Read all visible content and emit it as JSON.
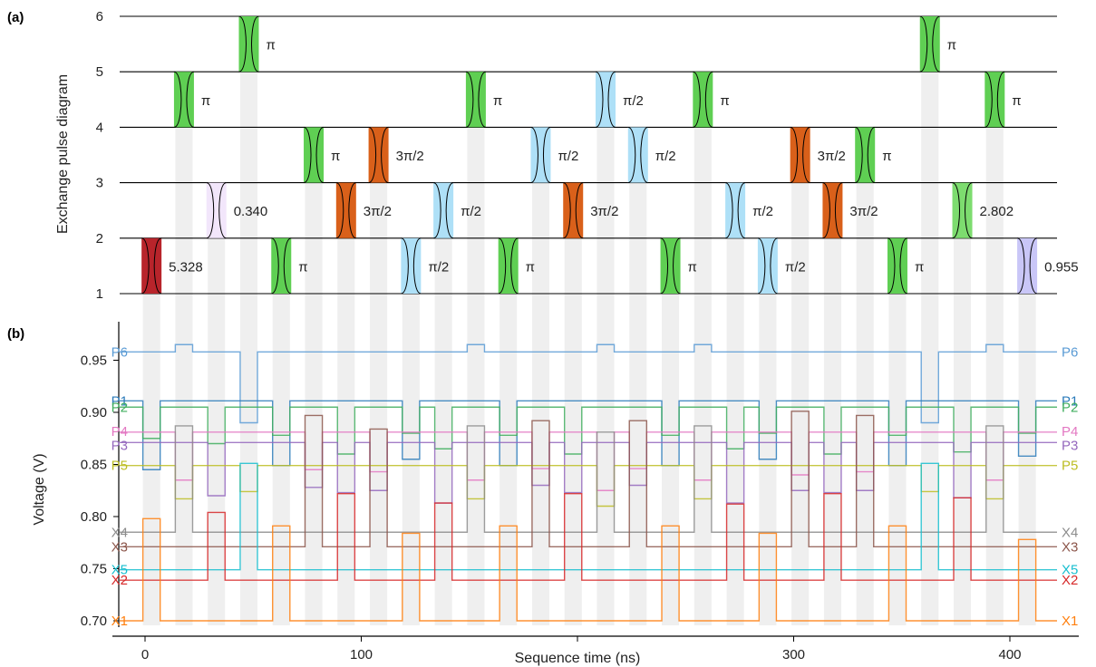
{
  "chart_data": [
    {
      "id": "a",
      "panel_label": "(a)",
      "type": "pulse-diagram",
      "ylabel": "Exchange pulse diagram",
      "qubit_lines": [
        1,
        2,
        3,
        4,
        5,
        6
      ],
      "pulses": [
        {
          "t": 3,
          "pair": [
            1,
            2
          ],
          "label": "5.328",
          "color": "#b8242b"
        },
        {
          "t": 33,
          "pair": [
            2,
            3
          ],
          "label": "0.340",
          "color": "#f2e6fb"
        },
        {
          "t": 18,
          "pair": [
            4,
            5
          ],
          "label": "π",
          "color": "#5fcf53"
        },
        {
          "t": 48,
          "pair": [
            5,
            6
          ],
          "label": "π",
          "color": "#5fcf53"
        },
        {
          "t": 63,
          "pair": [
            1,
            2
          ],
          "label": "π",
          "color": "#5fcf53"
        },
        {
          "t": 78,
          "pair": [
            3,
            4
          ],
          "label": "π",
          "color": "#5fcf53"
        },
        {
          "t": 93,
          "pair": [
            2,
            3
          ],
          "label": "3π/2",
          "color": "#d9601a"
        },
        {
          "t": 108,
          "pair": [
            3,
            4
          ],
          "label": "3π/2",
          "color": "#d9601a"
        },
        {
          "t": 123,
          "pair": [
            1,
            2
          ],
          "label": "π/2",
          "color": "#aee0f7"
        },
        {
          "t": 138,
          "pair": [
            2,
            3
          ],
          "label": "π/2",
          "color": "#aee0f7"
        },
        {
          "t": 153,
          "pair": [
            4,
            5
          ],
          "label": "π",
          "color": "#5fcf53"
        },
        {
          "t": 168,
          "pair": [
            1,
            2
          ],
          "label": "π",
          "color": "#5fcf53"
        },
        {
          "t": 183,
          "pair": [
            3,
            4
          ],
          "label": "π/2",
          "color": "#aee0f7"
        },
        {
          "t": 198,
          "pair": [
            2,
            3
          ],
          "label": "3π/2",
          "color": "#d9601a"
        },
        {
          "t": 213,
          "pair": [
            4,
            5
          ],
          "label": "π/2",
          "color": "#aee0f7"
        },
        {
          "t": 228,
          "pair": [
            3,
            4
          ],
          "label": "π/2",
          "color": "#aee0f7"
        },
        {
          "t": 243,
          "pair": [
            1,
            2
          ],
          "label": "π",
          "color": "#5fcf53"
        },
        {
          "t": 258,
          "pair": [
            4,
            5
          ],
          "label": "π",
          "color": "#5fcf53"
        },
        {
          "t": 273,
          "pair": [
            2,
            3
          ],
          "label": "π/2",
          "color": "#aee0f7"
        },
        {
          "t": 288,
          "pair": [
            1,
            2
          ],
          "label": "π/2",
          "color": "#aee0f7"
        },
        {
          "t": 303,
          "pair": [
            3,
            4
          ],
          "label": "3π/2",
          "color": "#d9601a"
        },
        {
          "t": 318,
          "pair": [
            2,
            3
          ],
          "label": "3π/2",
          "color": "#d9601a"
        },
        {
          "t": 333,
          "pair": [
            3,
            4
          ],
          "label": "π",
          "color": "#5fcf53"
        },
        {
          "t": 348,
          "pair": [
            1,
            2
          ],
          "label": "π",
          "color": "#5fcf53"
        },
        {
          "t": 363,
          "pair": [
            5,
            6
          ],
          "label": "π",
          "color": "#5fcf53"
        },
        {
          "t": 378,
          "pair": [
            2,
            3
          ],
          "label": "2.802",
          "color": "#7ddc6f"
        },
        {
          "t": 393,
          "pair": [
            4,
            5
          ],
          "label": "π",
          "color": "#5fcf53"
        },
        {
          "t": 408,
          "pair": [
            1,
            2
          ],
          "label": "0.955",
          "color": "#c9c6f7"
        }
      ]
    },
    {
      "id": "b",
      "panel_label": "(b)",
      "type": "line",
      "xlabel": "Sequence time (ns)",
      "ylabel": "Voltage (V)",
      "xlim": [
        -15,
        430
      ],
      "ylim": [
        0.693,
        0.98
      ],
      "xticks": [
        0,
        100,
        200,
        300,
        400
      ],
      "xtick_labels": [
        "0",
        "100",
        "",
        "300",
        "400"
      ],
      "yticks": [
        0.7,
        0.75,
        0.8,
        0.85,
        0.9,
        0.95
      ],
      "ytick_labels": [
        "0.70",
        "0.75",
        "0.80",
        "0.85",
        "0.90",
        "0.95"
      ],
      "pulse_window_ns": 8,
      "pulse_times_ns": [
        3,
        18,
        33,
        48,
        63,
        78,
        93,
        108,
        123,
        138,
        153,
        168,
        183,
        198,
        213,
        228,
        243,
        258,
        273,
        288,
        303,
        318,
        333,
        348,
        363,
        378,
        393,
        408
      ],
      "series": [
        {
          "name": "P6",
          "color": "#5a9bd5",
          "baseline": 0.958,
          "pulses": [
            [
              18,
              0.965
            ],
            [
              48,
              0.89
            ],
            [
              153,
              0.965
            ],
            [
              213,
              0.965
            ],
            [
              258,
              0.965
            ],
            [
              363,
              0.89
            ],
            [
              393,
              0.965
            ]
          ]
        },
        {
          "name": "P1",
          "color": "#2b7bba",
          "baseline": 0.911,
          "pulses": [
            [
              3,
              0.845
            ],
            [
              63,
              0.849
            ],
            [
              123,
              0.855
            ],
            [
              168,
              0.849
            ],
            [
              243,
              0.849
            ],
            [
              288,
              0.855
            ],
            [
              348,
              0.849
            ],
            [
              408,
              0.858
            ]
          ]
        },
        {
          "name": "P2",
          "color": "#3fae5e",
          "baseline": 0.905,
          "pulses": [
            [
              3,
              0.875
            ],
            [
              33,
              0.87
            ],
            [
              63,
              0.878
            ],
            [
              93,
              0.86
            ],
            [
              123,
              0.88
            ],
            [
              138,
              0.865
            ],
            [
              168,
              0.878
            ],
            [
              198,
              0.86
            ],
            [
              243,
              0.878
            ],
            [
              273,
              0.865
            ],
            [
              288,
              0.88
            ],
            [
              318,
              0.86
            ],
            [
              348,
              0.878
            ],
            [
              378,
              0.862
            ],
            [
              408,
              0.88
            ]
          ]
        },
        {
          "name": "P4",
          "color": "#e377c2",
          "baseline": 0.881,
          "pulses": [
            [
              18,
              0.835
            ],
            [
              78,
              0.845
            ],
            [
              108,
              0.843
            ],
            [
              153,
              0.835
            ],
            [
              183,
              0.846
            ],
            [
              213,
              0.825
            ],
            [
              228,
              0.846
            ],
            [
              258,
              0.835
            ],
            [
              303,
              0.84
            ],
            [
              333,
              0.843
            ],
            [
              393,
              0.835
            ]
          ]
        },
        {
          "name": "P3",
          "color": "#9467bd",
          "baseline": 0.871,
          "pulses": [
            [
              33,
              0.82
            ],
            [
              78,
              0.828
            ],
            [
              93,
              0.823
            ],
            [
              108,
              0.825
            ],
            [
              138,
              0.813
            ],
            [
              183,
              0.83
            ],
            [
              198,
              0.823
            ],
            [
              228,
              0.83
            ],
            [
              273,
              0.813
            ],
            [
              303,
              0.825
            ],
            [
              318,
              0.823
            ],
            [
              333,
              0.825
            ],
            [
              378,
              0.818
            ]
          ]
        },
        {
          "name": "P5",
          "color": "#bcbd22",
          "baseline": 0.849,
          "pulses": [
            [
              18,
              0.817
            ],
            [
              48,
              0.824
            ],
            [
              153,
              0.817
            ],
            [
              213,
              0.81
            ],
            [
              258,
              0.817
            ],
            [
              363,
              0.824
            ],
            [
              393,
              0.817
            ]
          ]
        },
        {
          "name": "X4",
          "color": "#8c8c8c",
          "baseline": 0.785,
          "pulses": [
            [
              18,
              0.887
            ],
            [
              153,
              0.887
            ],
            [
              213,
              0.881
            ],
            [
              258,
              0.887
            ],
            [
              393,
              0.887
            ]
          ]
        },
        {
          "name": "X3",
          "color": "#8c564b",
          "baseline": 0.771,
          "pulses": [
            [
              78,
              0.897
            ],
            [
              108,
              0.884
            ],
            [
              183,
              0.892
            ],
            [
              228,
              0.892
            ],
            [
              303,
              0.901
            ],
            [
              333,
              0.897
            ]
          ]
        },
        {
          "name": "X5",
          "color": "#17becf",
          "baseline": 0.749,
          "pulses": [
            [
              48,
              0.851
            ],
            [
              363,
              0.851
            ]
          ]
        },
        {
          "name": "X2",
          "color": "#d62728",
          "baseline": 0.739,
          "pulses": [
            [
              33,
              0.804
            ],
            [
              93,
              0.822
            ],
            [
              138,
              0.813
            ],
            [
              198,
              0.822
            ],
            [
              273,
              0.812
            ],
            [
              318,
              0.822
            ],
            [
              378,
              0.818
            ]
          ]
        },
        {
          "name": "X1",
          "color": "#ff7f0e",
          "baseline": 0.7,
          "pulses": [
            [
              3,
              0.798
            ],
            [
              63,
              0.791
            ],
            [
              123,
              0.784
            ],
            [
              168,
              0.791
            ],
            [
              243,
              0.791
            ],
            [
              288,
              0.784
            ],
            [
              348,
              0.791
            ],
            [
              408,
              0.778
            ]
          ]
        }
      ]
    }
  ]
}
